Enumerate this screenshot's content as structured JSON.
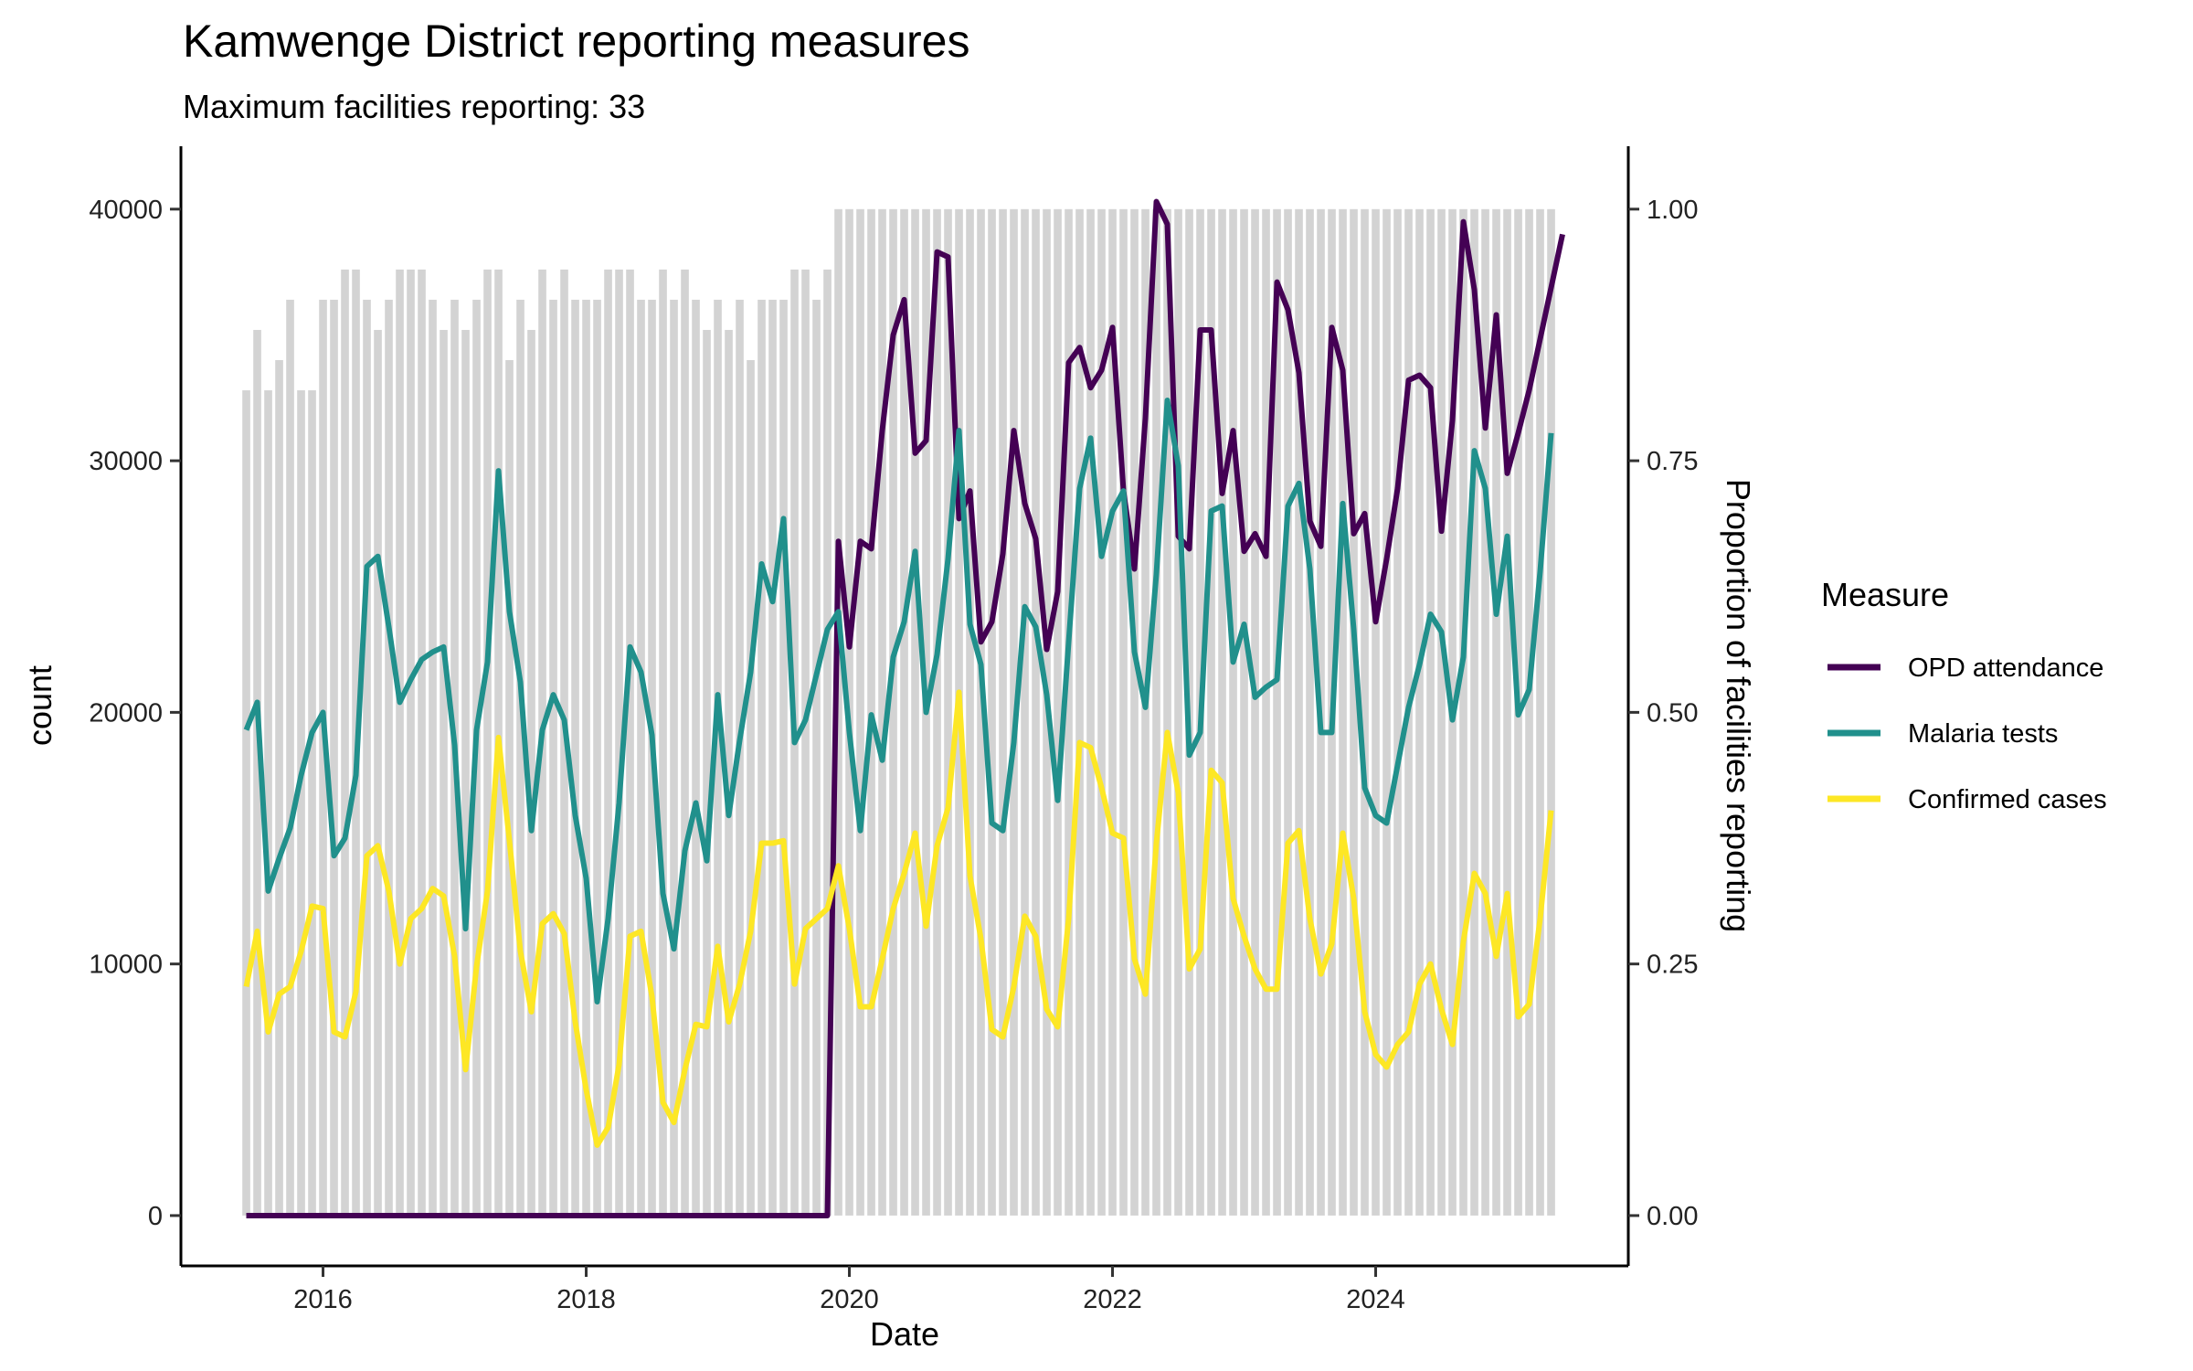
{
  "chart_data": {
    "type": "line",
    "title": "Kamwenge District reporting measures",
    "subtitle": "Maximum facilities reporting: 33",
    "xlabel": "Date",
    "ylabel": "count",
    "y2label": "Proportion of facilities reporting",
    "x_start": "2015-06",
    "x_end": "2025-05",
    "x_ticks": [
      "2016",
      "2018",
      "2020",
      "2022",
      "2024"
    ],
    "x_tick_years": [
      2016,
      2018,
      2020,
      2022,
      2024
    ],
    "ylim": [
      -2000,
      42500
    ],
    "y_ticks": [
      0,
      10000,
      20000,
      30000,
      40000
    ],
    "y_tick_labels": [
      "0",
      "10000",
      "20000",
      "30000",
      "40000"
    ],
    "y2lim": [
      -0.05,
      1.0625
    ],
    "y2_ticks": [
      0,
      0.25,
      0.5,
      0.75,
      1.0
    ],
    "y2_tick_labels": [
      "0.00",
      "0.25",
      "0.50",
      "0.75",
      "1.00"
    ],
    "legend_title": "Measure",
    "legend_position": "right",
    "reporting_proportion": [
      0.82,
      0.88,
      0.82,
      0.85,
      0.91,
      0.82,
      0.82,
      0.91,
      0.91,
      0.94,
      0.94,
      0.91,
      0.88,
      0.91,
      0.94,
      0.94,
      0.94,
      0.91,
      0.88,
      0.91,
      0.88,
      0.91,
      0.94,
      0.94,
      0.85,
      0.91,
      0.88,
      0.94,
      0.91,
      0.94,
      0.91,
      0.91,
      0.91,
      0.94,
      0.94,
      0.94,
      0.91,
      0.91,
      0.94,
      0.91,
      0.94,
      0.91,
      0.88,
      0.91,
      0.88,
      0.91,
      0.85,
      0.91,
      0.91,
      0.91,
      0.94,
      0.94,
      0.91,
      0.94,
      1.0,
      1.0,
      1.0,
      1.0,
      1.0,
      1.0,
      1.0,
      1.0,
      1.0,
      1.0,
      1.0,
      1.0,
      1.0,
      1.0,
      1.0,
      1.0,
      1.0,
      1.0,
      1.0,
      1.0,
      1.0,
      1.0,
      1.0,
      1.0,
      1.0,
      1.0,
      1.0,
      1.0,
      1.0,
      1.0,
      1.0,
      1.0,
      1.0,
      1.0,
      1.0,
      1.0,
      1.0,
      1.0,
      1.0,
      1.0,
      1.0,
      1.0,
      1.0,
      1.0,
      1.0,
      1.0,
      1.0,
      1.0,
      1.0,
      1.0,
      1.0,
      1.0,
      1.0,
      1.0,
      1.0,
      1.0,
      1.0,
      1.0,
      1.0,
      1.0,
      1.0,
      1.0,
      1.0,
      1.0,
      1.0,
      1.0
    ],
    "series": [
      {
        "name": "OPD attendance",
        "color": "#440154",
        "values": [
          0,
          0,
          0,
          0,
          0,
          0,
          0,
          0,
          0,
          0,
          0,
          0,
          0,
          0,
          0,
          0,
          0,
          0,
          0,
          0,
          0,
          0,
          0,
          0,
          0,
          0,
          0,
          0,
          0,
          0,
          0,
          0,
          0,
          0,
          0,
          0,
          0,
          0,
          0,
          0,
          0,
          0,
          0,
          0,
          0,
          0,
          0,
          0,
          0,
          0,
          0,
          0,
          0,
          0,
          26800,
          22600,
          26800,
          26500,
          31200,
          35000,
          36400,
          30300,
          30800,
          38300,
          38100,
          27700,
          28800,
          22800,
          23600,
          26300,
          31200,
          28300,
          26900,
          22500,
          24800,
          33900,
          34500,
          32900,
          33600,
          35300,
          28800,
          25700,
          31700,
          40300,
          39400,
          27000,
          26500,
          35200,
          35200,
          28700,
          31200,
          26400,
          27100,
          26200,
          37100,
          36000,
          33500,
          27600,
          26600,
          35300,
          33600,
          27100,
          27900,
          23600,
          26100,
          28900,
          33200,
          33400,
          32900,
          27200,
          31600,
          39500,
          36800,
          31300,
          35800,
          29500,
          31100,
          32800,
          39000
        ],
        "end_year": 2025.42
      },
      {
        "name": "Malaria tests",
        "color": "#21908C",
        "values": [
          19300,
          20400,
          12900,
          14200,
          15400,
          17500,
          19200,
          20000,
          14300,
          15000,
          17500,
          25800,
          26200,
          23400,
          20400,
          21300,
          22100,
          22400,
          22600,
          18700,
          11400,
          19300,
          22000,
          29600,
          24000,
          21200,
          15300,
          19300,
          20700,
          19700,
          15900,
          13400,
          8500,
          11800,
          16400,
          22600,
          21600,
          19100,
          12800,
          10600,
          14500,
          16400,
          14100,
          20700,
          15900,
          18900,
          21600,
          25900,
          24400,
          27700,
          18800,
          19700,
          21500,
          23300,
          24000,
          19200,
          15300,
          19900,
          18100,
          22200,
          23600,
          26400,
          20000,
          22300,
          26100,
          31200,
          23500,
          21900,
          15600,
          15300,
          18800,
          24200,
          23400,
          20700,
          16500,
          22800,
          28900,
          30900,
          26200,
          28000,
          28800,
          22400,
          20200,
          25500,
          32400,
          29800,
          18300,
          19200,
          28000,
          28200,
          22000,
          23500,
          20600,
          21000,
          21300,
          28200,
          29100,
          25700,
          19200,
          19200,
          28300,
          23300,
          17000,
          15900,
          15600,
          17900,
          20200,
          21900,
          23900,
          23200,
          19700,
          22200,
          30400,
          28900,
          23900,
          27000,
          19900,
          20900,
          25600,
          31100
        ]
      },
      {
        "name": "Confirmed cases",
        "color": "#FDE725",
        "values": [
          9100,
          11300,
          7300,
          8800,
          9100,
          10500,
          12300,
          12200,
          7300,
          7100,
          8900,
          14300,
          14700,
          12900,
          10000,
          11800,
          12200,
          13000,
          12700,
          10300,
          5800,
          9900,
          12900,
          19000,
          14900,
          10500,
          8100,
          11600,
          12000,
          11200,
          7700,
          5000,
          2800,
          3500,
          6000,
          11100,
          11300,
          8700,
          4500,
          3700,
          5800,
          7600,
          7500,
          10700,
          7700,
          9200,
          11300,
          14800,
          14800,
          14900,
          9200,
          11400,
          11800,
          12200,
          13900,
          11400,
          8300,
          8300,
          10200,
          12200,
          13600,
          15200,
          11500,
          14700,
          16200,
          20800,
          13500,
          11000,
          7400,
          7100,
          9100,
          11900,
          11100,
          8200,
          7500,
          11800,
          18800,
          18600,
          17000,
          15200,
          15000,
          10200,
          8800,
          14800,
          19200,
          16800,
          9800,
          10600,
          17700,
          17200,
          12600,
          11100,
          9800,
          9000,
          9000,
          14800,
          15300,
          11800,
          9600,
          10800,
          15200,
          12600,
          8100,
          6400,
          5900,
          6800,
          7300,
          9200,
          10000,
          8200,
          6800,
          10900,
          13600,
          12800,
          10300,
          12800,
          7900,
          8400,
          11800,
          16100
        ]
      }
    ]
  }
}
